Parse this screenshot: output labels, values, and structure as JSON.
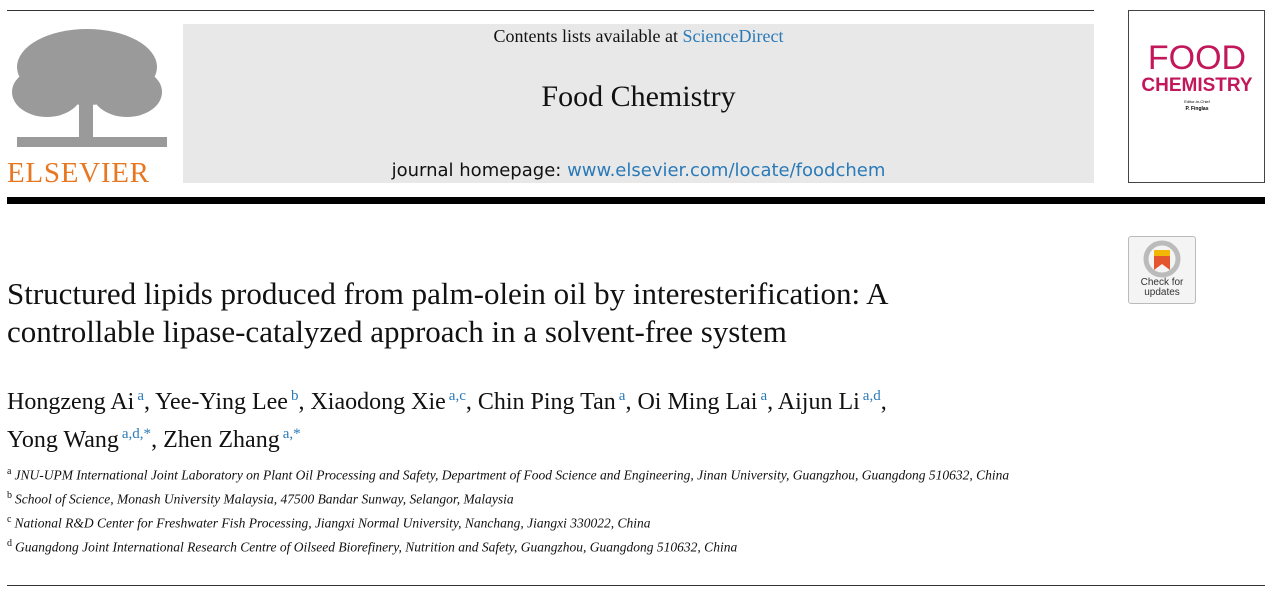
{
  "header": {
    "publisher": "ELSEVIER",
    "contents_prefix": "Contents lists available at",
    "contents_link": "ScienceDirect",
    "journal": "Food Chemistry",
    "homepage_prefix": "journal homepage:",
    "homepage_link": "www.elsevier.com/locate/foodchem",
    "cover": {
      "title_top": "FOOD",
      "title_bottom": "CHEMISTRY",
      "editor_role": "Editor-in-Chief",
      "editor": "P. Finglas"
    }
  },
  "check_updates": {
    "line1": "Check for",
    "line2": "updates"
  },
  "title_lines": [
    "Structured lipids produced from palm-olein oil by interesterification: A",
    "controllable lipase-catalyzed approach in a solvent-free system"
  ],
  "authors": {
    "separator": ",",
    "lines": [
      [
        {
          "name": "Hongzeng Ai",
          "sup": "a"
        },
        {
          "name": "Yee-Ying Lee",
          "sup": "b"
        },
        {
          "name": "Xiaodong Xie",
          "sup": "a,c"
        },
        {
          "name": "Chin Ping Tan",
          "sup": "a"
        },
        {
          "name": "Oi Ming Lai",
          "sup": "a"
        },
        {
          "name": "Aijun Li",
          "sup": "a,d"
        }
      ],
      [
        {
          "name": "Yong Wang",
          "sup": "a,d,*"
        },
        {
          "name": "Zhen Zhang",
          "sup": "a,*"
        }
      ]
    ]
  },
  "affiliations": [
    {
      "label": "a",
      "text": "JNU-UPM International Joint Laboratory on Plant Oil Processing and Safety, Department of Food Science and Engineering, Jinan University, Guangzhou, Guangdong 510632, China"
    },
    {
      "label": "b",
      "text": "School of Science, Monash University Malaysia, 47500 Bandar Sunway, Selangor, Malaysia"
    },
    {
      "label": "c",
      "text": "National R&D Center for Freshwater Fish Processing, Jiangxi Normal University, Nanchang, Jiangxi 330022, China"
    },
    {
      "label": "d",
      "text": "Guangdong Joint International Research Centre of Oilseed Biorefinery, Nutrition and Safety, Guangzhou, Guangdong 510632, China"
    }
  ]
}
